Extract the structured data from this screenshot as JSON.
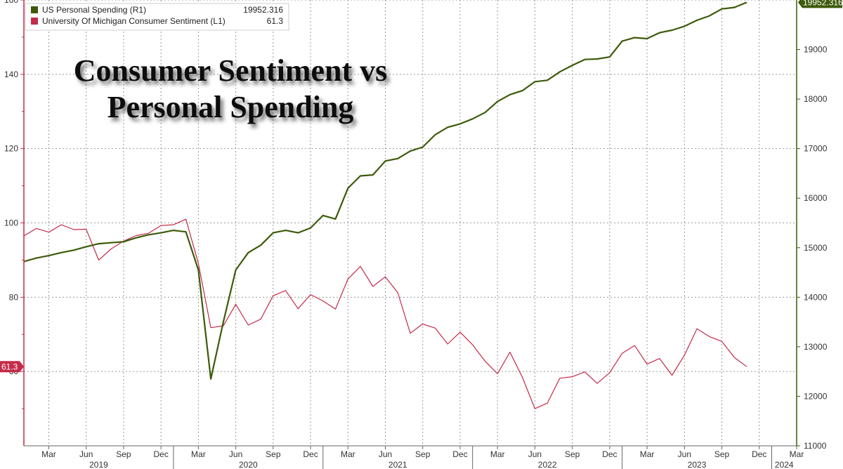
{
  "chart_data": {
    "type": "line",
    "title": "Consumer Sentiment vs Personal Spending",
    "title_lines": [
      "Consumer Sentiment vs",
      "Personal Spending"
    ],
    "x_tick_labels": [
      "Mar",
      "Jun",
      "Sep",
      "Dec",
      "Mar",
      "Jun",
      "Sep",
      "Dec",
      "Mar",
      "Jun",
      "Sep",
      "Dec",
      "Mar",
      "Jun",
      "Sep",
      "Dec",
      "Mar",
      "Jun",
      "Sep",
      "Dec",
      "Mar"
    ],
    "year_labels": [
      "2019",
      "2020",
      "2021",
      "2022",
      "2023",
      "2024"
    ],
    "x_range": [
      "2019-01",
      "2024-03"
    ],
    "left_axis": {
      "ticks": [
        "60",
        "80",
        "100",
        "120",
        "140",
        "160"
      ],
      "ylim": [
        40,
        160
      ]
    },
    "right_axis": {
      "ticks": [
        "11000",
        "12000",
        "13000",
        "14000",
        "15000",
        "16000",
        "17000",
        "18000",
        "19000"
      ],
      "ylim": [
        11000,
        20000
      ]
    },
    "grid": true,
    "legend_position": "top-left",
    "series": [
      {
        "name": "US Personal Spending (R1)",
        "last_value": "19952.316",
        "axis": "right",
        "color": "#3d5a0a",
        "x": [
          "2019-01",
          "2019-02",
          "2019-03",
          "2019-04",
          "2019-05",
          "2019-06",
          "2019-07",
          "2019-08",
          "2019-09",
          "2019-10",
          "2019-11",
          "2019-12",
          "2020-01",
          "2020-02",
          "2020-03",
          "2020-04",
          "2020-05",
          "2020-06",
          "2020-07",
          "2020-08",
          "2020-09",
          "2020-10",
          "2020-11",
          "2020-12",
          "2021-01",
          "2021-02",
          "2021-03",
          "2021-04",
          "2021-05",
          "2021-06",
          "2021-07",
          "2021-08",
          "2021-09",
          "2021-10",
          "2021-11",
          "2021-12",
          "2022-01",
          "2022-02",
          "2022-03",
          "2022-04",
          "2022-05",
          "2022-06",
          "2022-07",
          "2022-08",
          "2022-09",
          "2022-10",
          "2022-11",
          "2022-12",
          "2023-01",
          "2023-02",
          "2023-03",
          "2023-04",
          "2023-05",
          "2023-06",
          "2023-07",
          "2023-08",
          "2023-09",
          "2023-10",
          "2023-11"
        ],
        "values": [
          14720,
          14790,
          14840,
          14900,
          14950,
          15020,
          15080,
          15100,
          15120,
          15200,
          15260,
          15300,
          15350,
          15320,
          14550,
          12350,
          13500,
          14550,
          14900,
          15050,
          15300,
          15350,
          15300,
          15400,
          15650,
          15580,
          16200,
          16450,
          16470,
          16750,
          16800,
          16950,
          17030,
          17280,
          17430,
          17500,
          17600,
          17730,
          17950,
          18090,
          18170,
          18350,
          18380,
          18550,
          18680,
          18800,
          18810,
          18850,
          19170,
          19240,
          19220,
          19340,
          19390,
          19470,
          19590,
          19680,
          19820,
          19850,
          19952.316
        ]
      },
      {
        "name": "University Of Michigan Consumer Sentiment (L1)",
        "last_value": "61.3",
        "axis": "left",
        "color": "#c42b4a",
        "x": [
          "2019-01",
          "2019-02",
          "2019-03",
          "2019-04",
          "2019-05",
          "2019-06",
          "2019-07",
          "2019-08",
          "2019-09",
          "2019-10",
          "2019-11",
          "2019-12",
          "2020-01",
          "2020-02",
          "2020-03",
          "2020-04",
          "2020-05",
          "2020-06",
          "2020-07",
          "2020-08",
          "2020-09",
          "2020-10",
          "2020-11",
          "2020-12",
          "2021-01",
          "2021-02",
          "2021-03",
          "2021-04",
          "2021-05",
          "2021-06",
          "2021-07",
          "2021-08",
          "2021-09",
          "2021-10",
          "2021-11",
          "2021-12",
          "2022-01",
          "2022-02",
          "2022-03",
          "2022-04",
          "2022-05",
          "2022-06",
          "2022-07",
          "2022-08",
          "2022-09",
          "2022-10",
          "2022-11",
          "2022-12",
          "2023-01",
          "2023-02",
          "2023-03",
          "2023-04",
          "2023-05",
          "2023-06",
          "2023-07",
          "2023-08",
          "2023-09",
          "2023-10",
          "2023-11"
        ],
        "values": [
          96.5,
          98.5,
          97.5,
          99.5,
          98.2,
          98.3,
          90.0,
          93.0,
          95.1,
          96.6,
          97.2,
          99.3,
          99.5,
          101.0,
          89.1,
          71.8,
          72.3,
          78.1,
          72.5,
          74.1,
          80.4,
          81.8,
          76.9,
          80.7,
          79.0,
          76.8,
          84.9,
          88.3,
          82.9,
          85.5,
          81.2,
          70.3,
          72.8,
          71.7,
          67.4,
          70.6,
          67.2,
          62.8,
          59.4,
          65.2,
          58.4,
          50.0,
          51.5,
          58.2,
          58.6,
          59.9,
          56.8,
          59.7,
          64.9,
          67.0,
          62.0,
          63.5,
          59.0,
          64.4,
          71.5,
          69.4,
          68.1,
          63.8,
          61.3
        ]
      }
    ]
  }
}
